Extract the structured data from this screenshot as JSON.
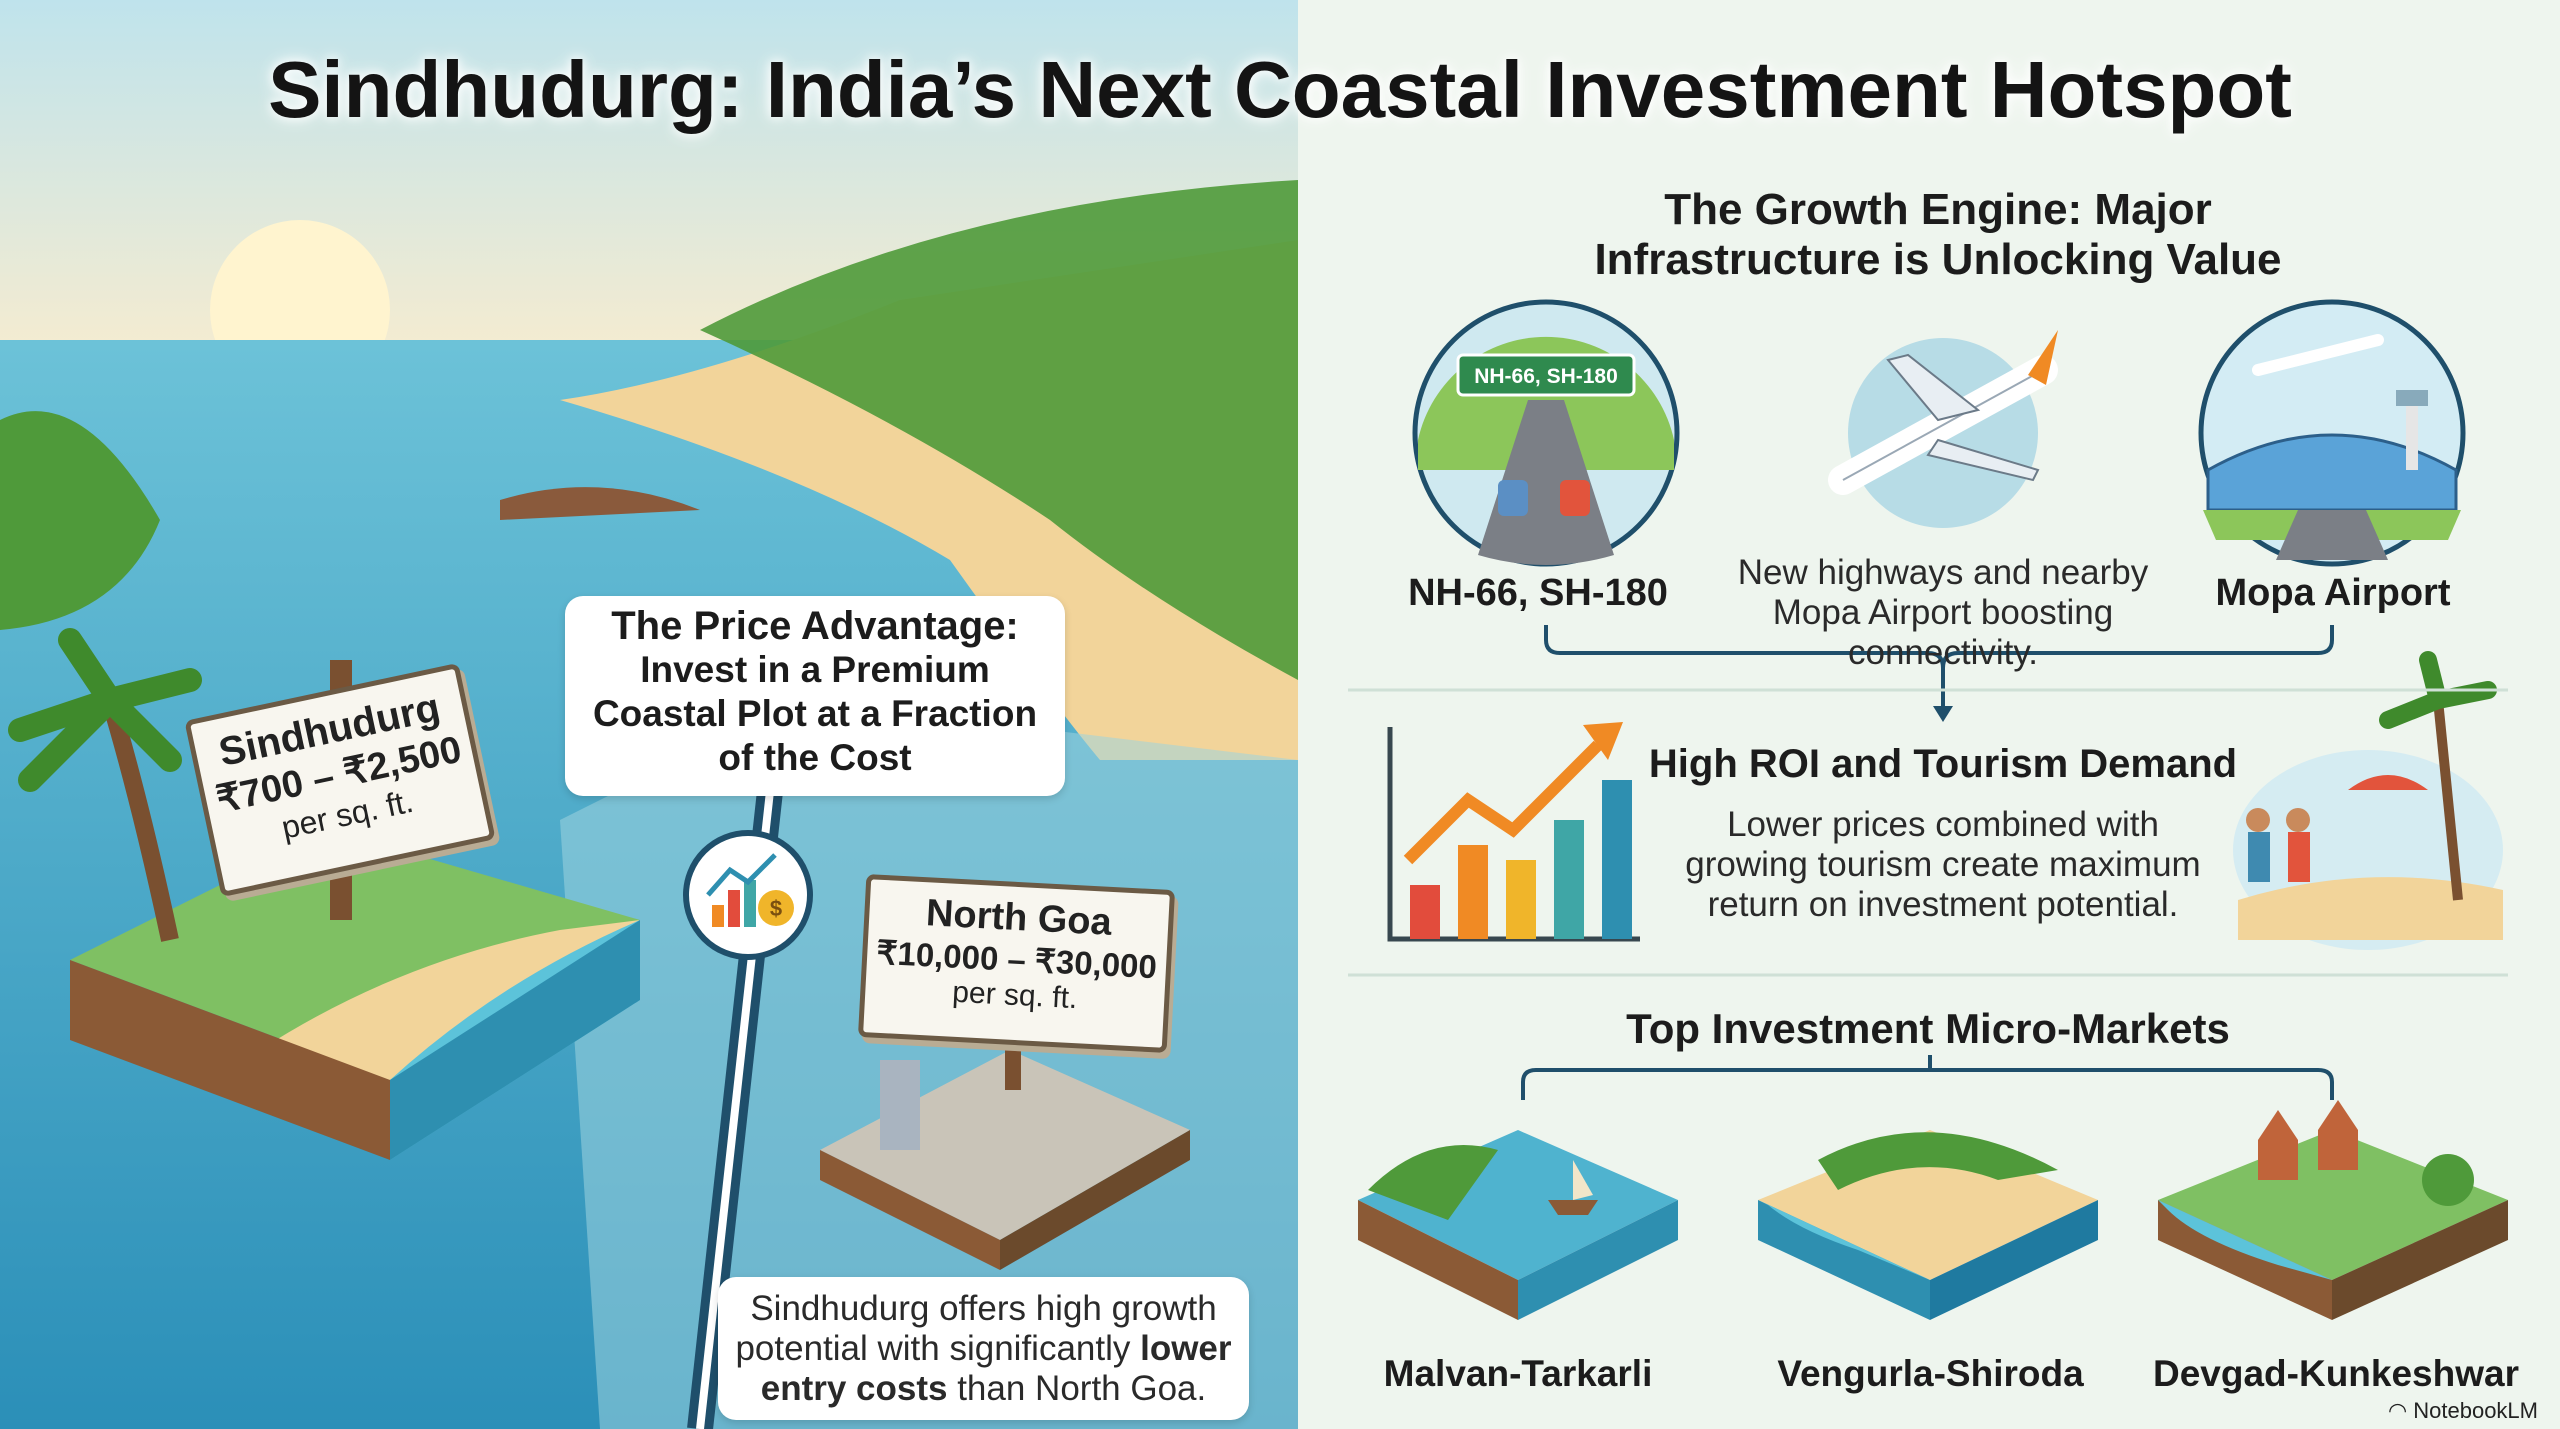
{
  "title": "Sindhudurg: India’s Next Coastal Investment Hotspot",
  "left": {
    "sindhudurg_sign": {
      "name": "Sindhudurg",
      "price": "₹700 – ₹2,500",
      "unit": "per sq. ft."
    },
    "callout": {
      "line1": "The Price Advantage:",
      "rest": "Invest in a Premium Coastal Plot at a Fraction of the Cost"
    },
    "goa_sign": {
      "name": "North Goa",
      "price": "₹10,000 – ₹30,000",
      "unit": "per sq. ft."
    },
    "summary": {
      "text": "Sindhudurg offers high growth potential with significantly ",
      "bold": "lower entry costs",
      "tail": " than North Goa."
    }
  },
  "right": {
    "growth": {
      "heading": "The Growth Engine: Major Infrastructure is Unlocking Value",
      "highway_sign": "NH-66, SH-180",
      "highway_label": "NH-66, SH-180",
      "description": "New highways and nearby Mopa Airport boosting connectivity.",
      "airport_label": "Mopa Airport"
    },
    "roi": {
      "heading": "High ROI and Tourism Demand",
      "description": "Lower prices combined with growing tourism create maximum return on investment potential."
    },
    "markets": {
      "heading": "Top Investment Micro-Markets",
      "items": [
        {
          "label": "Malvan-Tarkarli"
        },
        {
          "label": "Vengurla-Shiroda"
        },
        {
          "label": "Devgad-Kunkeshwar"
        }
      ]
    }
  },
  "watermark": "NotebookLM",
  "colors": {
    "ocean": "#3fa6c9",
    "sand": "#f2d49a",
    "green": "#4f9a3a",
    "panel": "#eef5ee",
    "accent_orange": "#f08a24"
  }
}
